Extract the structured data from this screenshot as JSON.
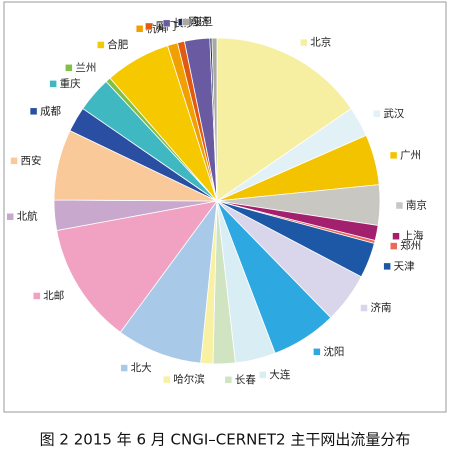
{
  "chart_data": {
    "type": "pie",
    "caption": "图 2 2015 年 6 月 CNGI–CERNET2 主干网出流量分布",
    "categories": [
      "北京",
      "武汉",
      "广州",
      "南京",
      "上海",
      "郑州",
      "天津",
      "济南",
      "沈阳",
      "大连",
      "长春",
      "哈尔滨",
      "北大",
      "北邮",
      "北航",
      "西安",
      "成都",
      "重庆",
      "兰州",
      "合肥",
      "杭州",
      "厦门",
      "长沙",
      "同济",
      "复旦"
    ],
    "values": [
      15.4,
      3,
      5,
      4,
      1.5,
      0.3,
      3.5,
      5,
      6.5,
      4,
      2.2,
      1.2,
      8.5,
      12,
      3,
      7,
      2.5,
      3.5,
      0.5,
      6.5,
      1,
      0.7,
      2.5,
      0.2,
      0.5
    ],
    "colors": [
      "#f6efa2",
      "#e2f1f6",
      "#f4c300",
      "#c9c7c1",
      "#a3206f",
      "#e86a5a",
      "#1c58a6",
      "#d9d5ea",
      "#2ea8e0",
      "#d9edf5",
      "#d0e4c2",
      "#f8f0a2",
      "#a9c9e9",
      "#f1a2c2",
      "#c8a8cd",
      "#f9c99a",
      "#2a4ea1",
      "#3fb8c1",
      "#80c042",
      "#f5c800",
      "#f0a000",
      "#e05a10",
      "#6a5aa1",
      "#1a2a61",
      "#a9a9a1"
    ]
  }
}
